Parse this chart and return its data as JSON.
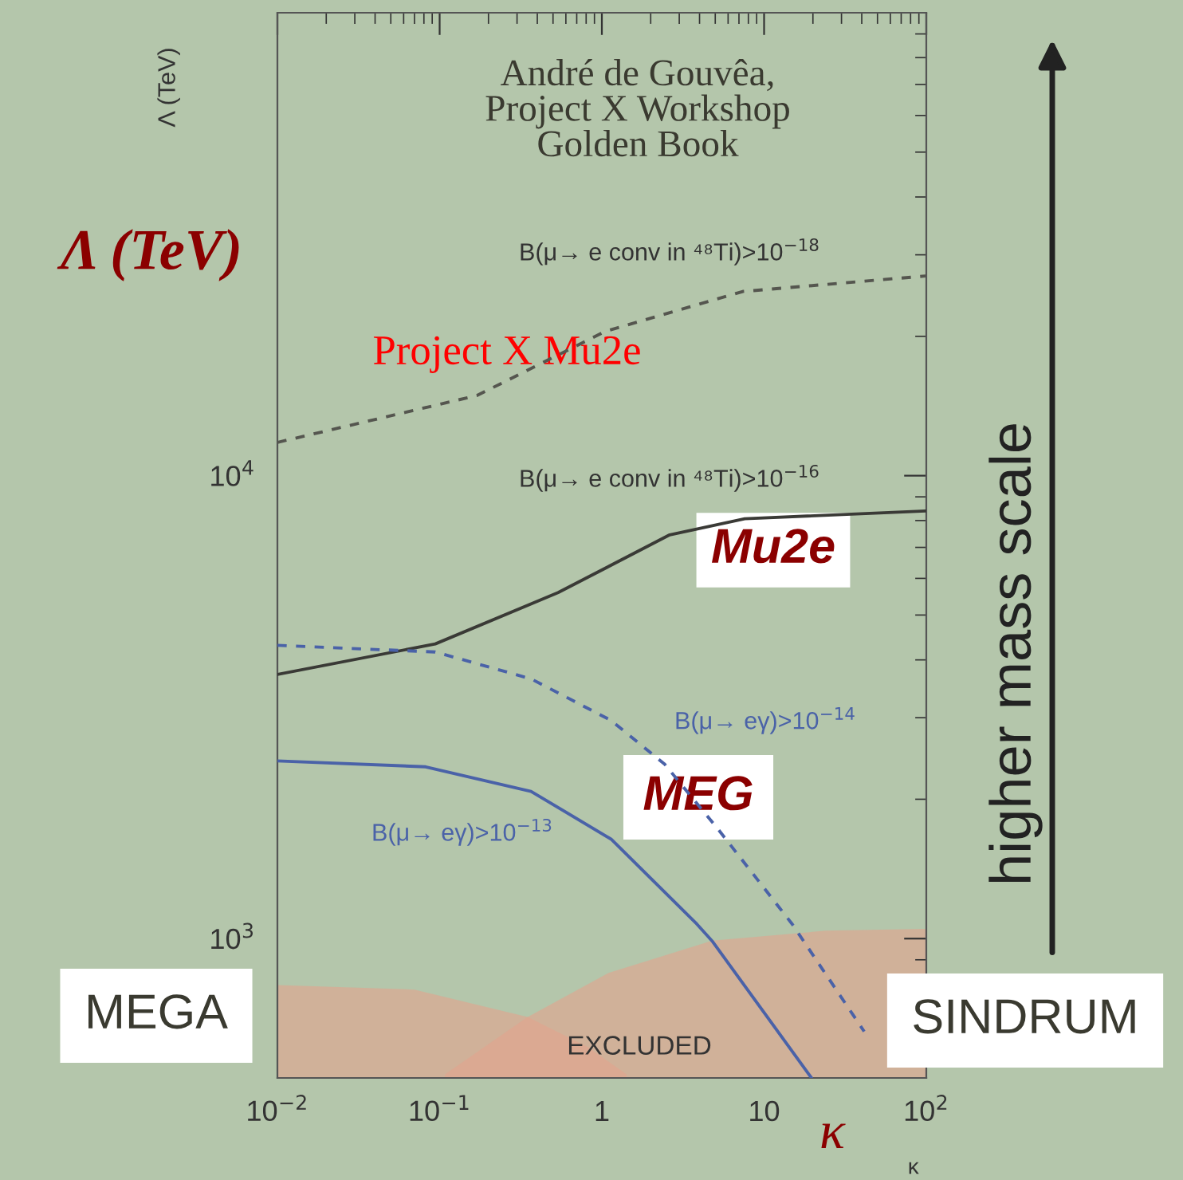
{
  "chart_data": {
    "type": "line",
    "xlabel": "κ",
    "ylabel": "Λ (TeV)",
    "log": "xy",
    "xlim": [
      0.01,
      100
    ],
    "ylim": [
      500,
      100000
    ],
    "xticks": [
      {
        "value": 0.01,
        "label": "10$^{−2}$"
      },
      {
        "value": 0.1,
        "label": "10$^{−1}$"
      },
      1,
      10,
      {
        "value": 100,
        "label": "10$^{2}$"
      }
    ],
    "yticks": [
      {
        "value": 1000,
        "label": "10$^{3}$"
      },
      {
        "value": 10000,
        "label": "10$^{4}$"
      }
    ],
    "grid": false,
    "series": [
      {
        "type": "area",
        "color": "#e3a48e",
        "x": [
          0.01,
          0.07,
          0.349,
          0.82,
          1.42
        ],
        "values": [
          794,
          776,
          677,
          583,
          509
        ]
      },
      {
        "type": "area",
        "color": "#e3a48e",
        "x": [
          0.108,
          0.349,
          1.1,
          4.8,
          24,
          99
        ],
        "values": [
          509,
          677,
          843,
          990,
          1040,
          1050
        ]
      },
      {
        "color": "#55564f",
        "line_style": "dashed",
        "x": [
          0.01,
          0.17,
          1.05,
          7.4,
          99
        ],
        "values": [
          11800,
          14900,
          20500,
          25000,
          27000
        ]
      },
      {
        "color": "#3a3a36",
        "line_style": "solid",
        "x": [
          0.01,
          0.094,
          0.537,
          2.62,
          7.6,
          99
        ],
        "values": [
          3720,
          4330,
          5590,
          7450,
          8070,
          8390
        ]
      },
      {
        "color": "#4a62a8",
        "line_style": "dashed",
        "x": [
          0.01,
          0.094,
          0.366,
          1.14,
          2.44,
          5.16,
          14.9,
          41.4
        ],
        "values": [
          4300,
          4160,
          3640,
          2960,
          2380,
          1730,
          1075,
          630
        ]
      },
      {
        "color": "#4a62a8",
        "line_style": "solid",
        "x": [
          0.01,
          0.082,
          0.366,
          1.14,
          3.85,
          4.82,
          19.6
        ],
        "values": [
          2420,
          2350,
          2080,
          1640,
          1075,
          985,
          500
        ]
      }
    ],
    "annotations": [
      "B(μ→ e conv in ⁴⁸Ti)>10$^{−18}$",
      "B(μ→ e conv in ⁴⁸Ti)>10$^{−16}$",
      "B(μ→ eγ)>10$^{−14}$",
      "B(μ→ eγ)>10$^{−13}$",
      "Project X Mu2e",
      "Mu2e",
      "MEG",
      "EXCLUDED",
      "André de Gouvêa,\nProject X Workshop\nGolden Book",
      "Λ (TeV)",
      "κ",
      "MEGA",
      "SINDRUM",
      "higher mass scale"
    ]
  }
}
